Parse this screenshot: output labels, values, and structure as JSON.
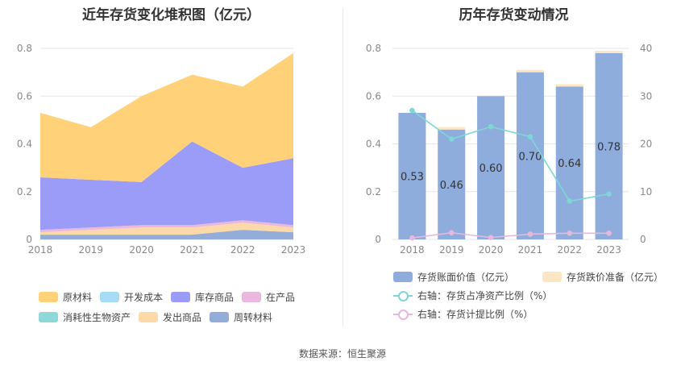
{
  "left_chart": {
    "title": "近年存货变化堆积图（亿元）"
  },
  "right_chart": {
    "title": "历年存货变动情况"
  },
  "source": "数据来源：恒生聚源",
  "colors": {
    "raw_materials": "#FFD27A",
    "dev_cost": "#A8DCF5",
    "inventory_goods": "#9A9CF8",
    "wip": "#E9B8DC",
    "consumable_bio": "#8ED8D8",
    "shipped_goods": "#FCD9A8",
    "turnover_materials": "#93ACDA",
    "bar_value": "#8EACDC",
    "bar_reserve": "#FCE6C4",
    "line_ratio": "#7FD6D6",
    "line_provision": "#E8B8DC"
  },
  "chart_data": [
    {
      "type": "area",
      "stacked": true,
      "x": [
        "2018",
        "2019",
        "2020",
        "2021",
        "2022",
        "2023"
      ],
      "ylim": [
        0,
        0.8
      ],
      "yticks": [
        "0",
        "0.2",
        "0.4",
        "0.6",
        "0.8"
      ],
      "grid": true,
      "legend_position": "bottom",
      "series": [
        {
          "name": "周转材料",
          "key": "turnover_materials",
          "values": [
            0.02,
            0.02,
            0.02,
            0.02,
            0.04,
            0.03
          ]
        },
        {
          "name": "发出商品",
          "key": "shipped_goods",
          "values": [
            0.01,
            0.02,
            0.03,
            0.03,
            0.03,
            0.02
          ]
        },
        {
          "name": "消耗性生物资产",
          "key": "consumable_bio",
          "values": [
            0.0,
            0.0,
            0.0,
            0.0,
            0.0,
            0.0
          ]
        },
        {
          "name": "在产品",
          "key": "wip",
          "values": [
            0.01,
            0.01,
            0.01,
            0.01,
            0.01,
            0.01
          ]
        },
        {
          "name": "库存商品",
          "key": "inventory_goods",
          "values": [
            0.22,
            0.2,
            0.18,
            0.35,
            0.22,
            0.28
          ]
        },
        {
          "name": "开发成本",
          "key": "dev_cost",
          "values": [
            0.0,
            0.0,
            0.0,
            0.0,
            0.0,
            0.0
          ]
        },
        {
          "name": "原材料",
          "key": "raw_materials",
          "values": [
            0.27,
            0.22,
            0.36,
            0.28,
            0.34,
            0.44
          ]
        }
      ],
      "legend": [
        {
          "name": "原材料",
          "key": "raw_materials"
        },
        {
          "name": "开发成本",
          "key": "dev_cost"
        },
        {
          "name": "库存商品",
          "key": "inventory_goods"
        },
        {
          "name": "在产品",
          "key": "wip"
        },
        {
          "name": "消耗性生物资产",
          "key": "consumable_bio"
        },
        {
          "name": "发出商品",
          "key": "shipped_goods"
        },
        {
          "name": "周转材料",
          "key": "turnover_materials"
        }
      ]
    },
    {
      "type": "bar",
      "stacked": true,
      "x": [
        "2018",
        "2019",
        "2020",
        "2021",
        "2022",
        "2023"
      ],
      "ylim": [
        0,
        0.8
      ],
      "yticks": [
        "0",
        "0.2",
        "0.4",
        "0.6",
        "0.8"
      ],
      "y2lim": [
        0,
        40
      ],
      "y2ticks": [
        "0",
        "10",
        "20",
        "30",
        "40"
      ],
      "grid": true,
      "legend_position": "bottom",
      "series": [
        {
          "name": "存货账面价值（亿元）",
          "key": "bar_value",
          "axis": "left",
          "values": [
            0.53,
            0.46,
            0.6,
            0.7,
            0.64,
            0.78
          ],
          "labels": [
            "0.53",
            "0.46",
            "0.60",
            "0.70",
            "0.64",
            "0.78"
          ]
        },
        {
          "name": "存货跌价准备（亿元）",
          "key": "bar_reserve",
          "axis": "left",
          "values": [
            0.0,
            0.01,
            0.0,
            0.01,
            0.01,
            0.01
          ]
        },
        {
          "name": "右轴：存货占净资产比例（%）",
          "key": "line_ratio",
          "axis": "right",
          "type": "line",
          "values": [
            27.0,
            21.0,
            23.6,
            21.5,
            8.0,
            9.5
          ]
        },
        {
          "name": "右轴：存货计提比例（%）",
          "key": "line_provision",
          "axis": "right",
          "type": "line",
          "values": [
            0.3,
            1.4,
            0.4,
            1.1,
            1.3,
            1.3
          ]
        }
      ]
    }
  ]
}
